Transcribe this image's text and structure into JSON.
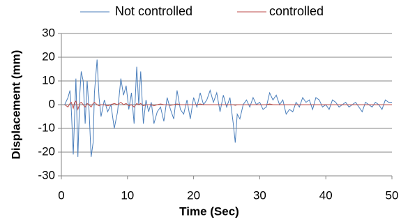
{
  "chart_data": {
    "type": "line",
    "xlabel": "Time (Sec)",
    "ylabel": "Displacement (mm)",
    "x": [
      0.5,
      1,
      1.3,
      1.5,
      1.8,
      2.0,
      2.2,
      2.5,
      2.8,
      3.0,
      3.3,
      3.6,
      3.9,
      4.2,
      4.5,
      4.8,
      5.0,
      5.4,
      5.7,
      6.0,
      6.5,
      7,
      7.5,
      8,
      8.5,
      9,
      9.4,
      9.8,
      10.2,
      10.6,
      11,
      11.4,
      11.7,
      12,
      12.4,
      12.8,
      13.2,
      13.6,
      14,
      14.5,
      15,
      15.5,
      16,
      16.5,
      17,
      17.5,
      18,
      18.5,
      19,
      19.5,
      20,
      20.5,
      21,
      21.5,
      22,
      22.5,
      23,
      23.5,
      24,
      24.5,
      25,
      25.5,
      26,
      26.3,
      26.6,
      27,
      27.5,
      28,
      28.5,
      29,
      29.5,
      30,
      30.5,
      31,
      31.5,
      32,
      32.5,
      33,
      33.5,
      34,
      34.5,
      35,
      35.5,
      36,
      36.5,
      37,
      37.5,
      38,
      38.5,
      39,
      39.5,
      40,
      40.5,
      41,
      41.5,
      42,
      42.5,
      43,
      43.5,
      44,
      44.5,
      45,
      45.5,
      46,
      46.5,
      47,
      47.5,
      48,
      48.5,
      49,
      49.5,
      50
    ],
    "series": [
      {
        "name": "Not controlled",
        "color": "#4a7ebb",
        "values": [
          0,
          3,
          6,
          -2,
          -21,
          -5,
          11,
          -22,
          5,
          14,
          10,
          -8,
          10,
          -3,
          -22,
          -16,
          5,
          19,
          3,
          -5,
          2,
          -3,
          0,
          -10,
          -3,
          11,
          4,
          8,
          -2,
          5,
          -8,
          16,
          0,
          14,
          -8,
          2,
          -3,
          1,
          -8,
          -3,
          -1,
          -7,
          3,
          -2,
          -6,
          6,
          -2,
          -4,
          2,
          -6,
          3,
          -1,
          5,
          0,
          2,
          6,
          1,
          5,
          -3,
          4,
          -1,
          3,
          -8,
          -16,
          -4,
          -6,
          0,
          2,
          -1,
          3,
          0,
          1,
          -2,
          -1,
          5,
          2,
          4,
          0,
          2,
          -4,
          -2,
          -3,
          1,
          -1,
          3,
          1,
          2,
          -2,
          3,
          2,
          -1,
          0,
          -2,
          2,
          1,
          -1,
          0,
          1,
          -1,
          0,
          1,
          -1,
          -3,
          1,
          0,
          -1,
          1,
          0,
          -2,
          2,
          1,
          1
        ]
      },
      {
        "name": "controlled",
        "color": "#be4b48",
        "values": [
          0,
          -1,
          0.5,
          1,
          -1.5,
          1,
          1.5,
          -2,
          0.5,
          1,
          0,
          -1,
          0.5,
          0,
          -1,
          0.5,
          1,
          0,
          -0.5,
          0,
          0,
          -0.5,
          0,
          0.5,
          0,
          1,
          0,
          0.5,
          -0.5,
          0,
          -1,
          0.5,
          0,
          0.5,
          -0.5,
          0,
          0,
          0,
          -0.5,
          0,
          0.3,
          0,
          0,
          -0.3,
          0,
          0.3,
          0,
          0,
          0,
          0,
          0,
          0,
          0.3,
          0,
          0,
          0,
          0,
          0,
          0,
          0,
          0,
          0,
          0,
          -0.3,
          0,
          0,
          0,
          0,
          0,
          0,
          0,
          0,
          0,
          0,
          0.3,
          0,
          0,
          0,
          0,
          0,
          0,
          0,
          0,
          0,
          0,
          0,
          0,
          0,
          0,
          0,
          0,
          0,
          0,
          0,
          0,
          0,
          0,
          0,
          0,
          0,
          0,
          0,
          0,
          0,
          0,
          0,
          0,
          0,
          0,
          0,
          0,
          0
        ]
      }
    ],
    "xlim": [
      0,
      50
    ],
    "xticks": [
      0,
      10,
      20,
      30,
      40,
      50
    ],
    "ylim": [
      -30,
      30
    ],
    "yticks": [
      -30,
      -20,
      -10,
      0,
      10,
      20,
      30
    ],
    "grid": true,
    "legend": "top"
  }
}
